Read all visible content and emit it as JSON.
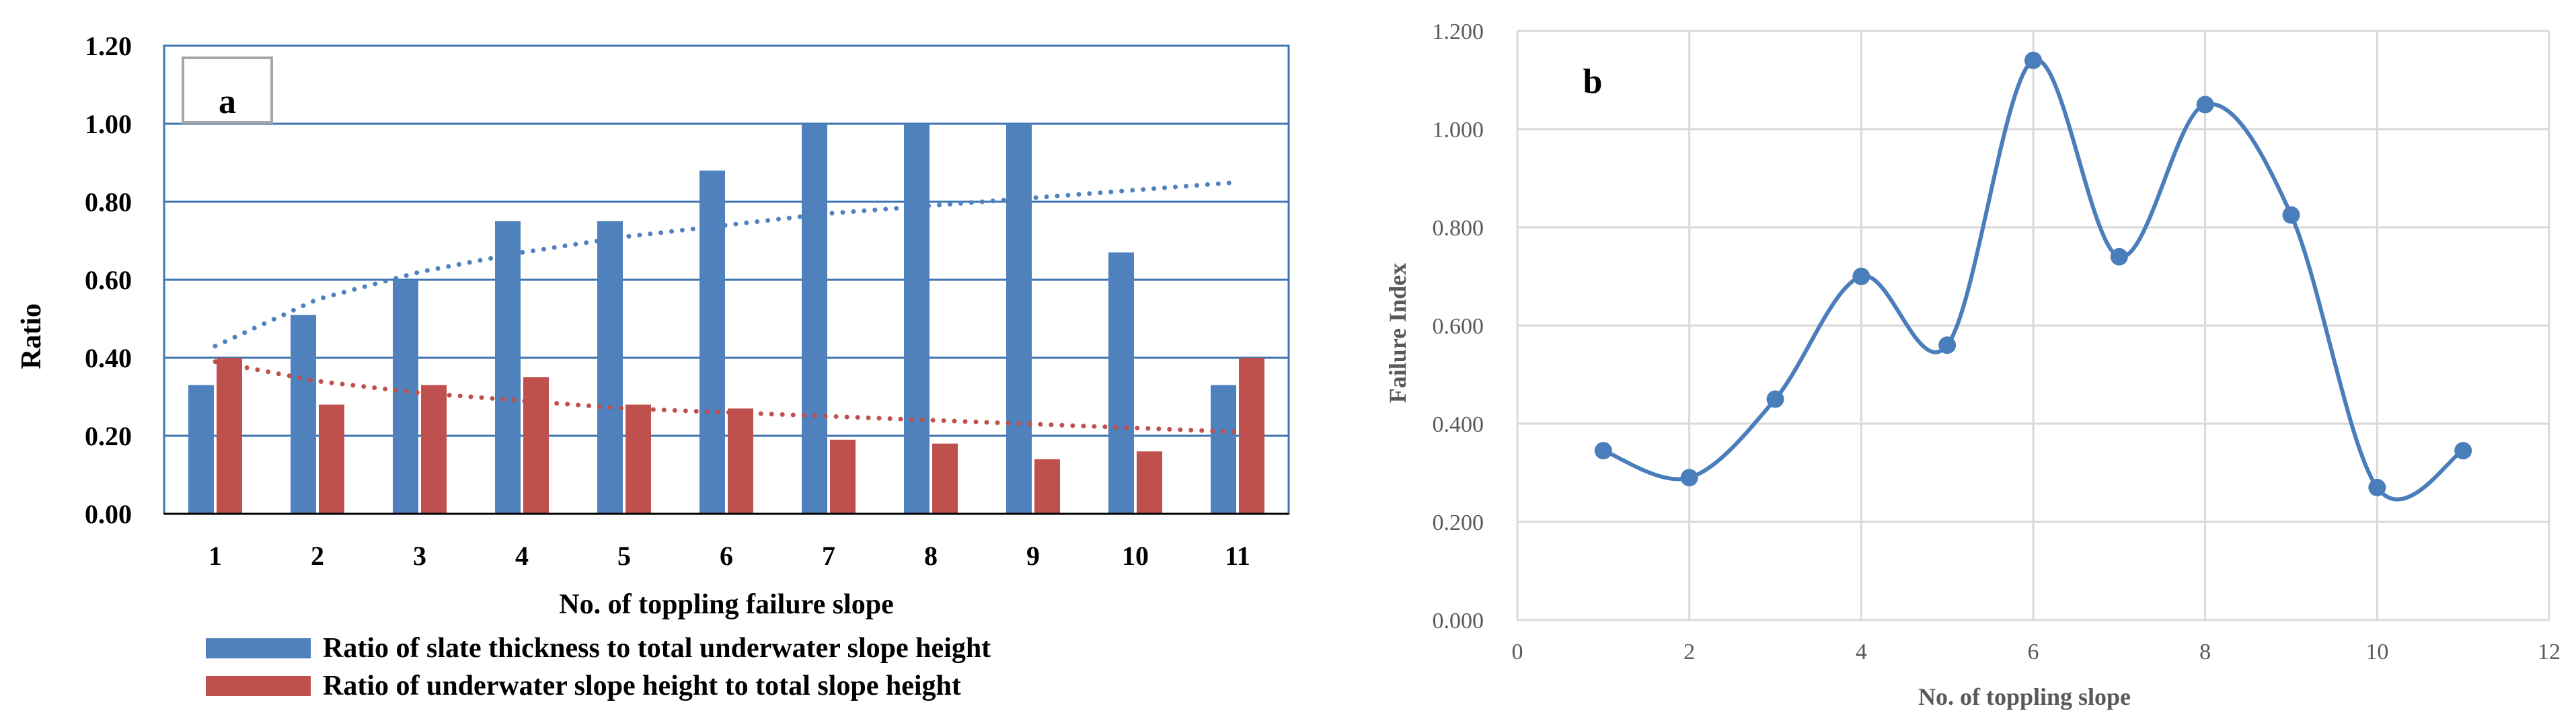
{
  "chart_data": [
    {
      "panel": "a",
      "type": "bar",
      "xlabel": "No. of toppling failure slope",
      "ylabel": "Ratio",
      "ylim": [
        0,
        1.2
      ],
      "yticks": [
        "0.00",
        "0.20",
        "0.40",
        "0.60",
        "0.80",
        "1.00",
        "1.20"
      ],
      "categories": [
        "1",
        "2",
        "3",
        "4",
        "5",
        "6",
        "7",
        "8",
        "9",
        "10",
        "11"
      ],
      "series": [
        {
          "name": "Ratio of slate thickness to total underwater slope height",
          "color": "#4f81bd",
          "values": [
            0.33,
            0.51,
            0.6,
            0.75,
            0.75,
            0.88,
            1.0,
            1.0,
            1.0,
            0.67,
            0.33
          ]
        },
        {
          "name": "Ratio of underwater slope height to total slope height",
          "color": "#c0504d",
          "values": [
            0.4,
            0.28,
            0.33,
            0.35,
            0.28,
            0.27,
            0.19,
            0.18,
            0.14,
            0.16,
            0.4
          ]
        }
      ],
      "trendlines": [
        {
          "series": 0,
          "type": "logarithmic",
          "color": "#4f81bd",
          "values": [
            0.43,
            0.55,
            0.62,
            0.67,
            0.71,
            0.74,
            0.77,
            0.79,
            0.81,
            0.83,
            0.85
          ]
        },
        {
          "series": 1,
          "type": "logarithmic",
          "color": "#c0504d",
          "values": [
            0.39,
            0.34,
            0.31,
            0.29,
            0.27,
            0.26,
            0.25,
            0.24,
            0.23,
            0.22,
            0.21
          ]
        }
      ],
      "grid": true,
      "legend": "bottom"
    },
    {
      "panel": "b",
      "type": "line",
      "smooth": true,
      "xlabel": "No. of toppling slope",
      "ylabel": "Failure Index",
      "xlim": [
        0,
        12
      ],
      "ylim": [
        0,
        1.2
      ],
      "xticks": [
        "0",
        "2",
        "4",
        "6",
        "8",
        "10",
        "12"
      ],
      "yticks": [
        "0.000",
        "0.200",
        "0.400",
        "0.600",
        "0.800",
        "1.000",
        "1.200"
      ],
      "x": [
        1,
        2,
        3,
        4,
        5,
        6,
        7,
        8,
        9,
        10,
        11
      ],
      "y": [
        0.345,
        0.29,
        0.45,
        0.7,
        0.56,
        1.14,
        0.74,
        1.05,
        0.825,
        0.27,
        0.345
      ],
      "color": "#4a7ebb",
      "grid": true
    }
  ]
}
